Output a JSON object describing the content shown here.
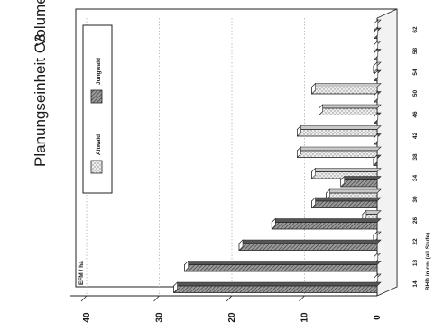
{
  "page": {
    "title": "Planungseinheit C3",
    "subtitle": "Volumen"
  },
  "chart_data": {
    "type": "bar",
    "orientation": "horizontal",
    "rendering": "3d",
    "rotation_deg": -90,
    "title": "Planungseinheit C3",
    "subtitle": "Volumen",
    "ylabel": "EFM / ha",
    "xlabel": "BHD in cm (all Stufe)",
    "yticks": [
      "0",
      "10",
      "20",
      "30",
      "40"
    ],
    "ylim": [
      0,
      40
    ],
    "grid": true,
    "legend_position": "top-right",
    "categories": [
      "14",
      "18",
      "22",
      "26",
      "30",
      "34",
      "38",
      "42",
      "46",
      "50",
      "54",
      "58",
      "62"
    ],
    "series": [
      {
        "name": "Altwald",
        "pattern": "dotted",
        "color": "#dcdcdc",
        "values": [
          0,
          0,
          0.5,
          2,
          7,
          9,
          11,
          11,
          8,
          9,
          0.5,
          0,
          0
        ]
      },
      {
        "name": "Jungwald",
        "pattern": "hatched",
        "color": "#777777",
        "values": [
          28,
          26.5,
          19,
          14.5,
          9,
          5,
          0.5,
          0,
          0,
          0,
          0,
          0,
          0
        ]
      }
    ]
  }
}
